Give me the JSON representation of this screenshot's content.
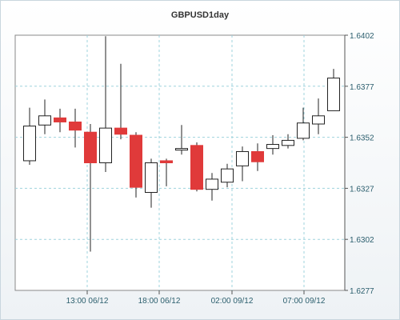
{
  "chart_data": {
    "type": "candlestick",
    "title": "GBPUSD1day",
    "ylim": [
      1.6277,
      1.6402
    ],
    "y_ticks": [
      "1.6402",
      "1.6377",
      "1.6352",
      "1.6327",
      "1.6302",
      "1.6277"
    ],
    "x_ticks": [
      "13:00 06/12",
      "18:00 06/12",
      "02:00 09/12",
      "07:00 09/12"
    ],
    "grid": true,
    "colors": {
      "up": "#ffffff",
      "down": "#e03a3a",
      "outline": "#222222",
      "grid": "#9fd3dd"
    },
    "candles": [
      {
        "open": 1.63405,
        "close": 1.63575,
        "high": 1.63665,
        "low": 1.63385
      },
      {
        "open": 1.6358,
        "close": 1.63625,
        "high": 1.63705,
        "low": 1.63535
      },
      {
        "open": 1.63615,
        "close": 1.63595,
        "high": 1.6366,
        "low": 1.63545
      },
      {
        "open": 1.63595,
        "close": 1.63555,
        "high": 1.6366,
        "low": 1.6347
      },
      {
        "open": 1.63545,
        "close": 1.63395,
        "high": 1.63585,
        "low": 1.6296
      },
      {
        "open": 1.63395,
        "close": 1.63565,
        "high": 1.64015,
        "low": 1.6335
      },
      {
        "open": 1.63565,
        "close": 1.63535,
        "high": 1.6388,
        "low": 1.6351
      },
      {
        "open": 1.6353,
        "close": 1.63275,
        "high": 1.63545,
        "low": 1.63225
      },
      {
        "open": 1.6325,
        "close": 1.63395,
        "high": 1.63415,
        "low": 1.63175
      },
      {
        "open": 1.63405,
        "close": 1.63395,
        "high": 1.63415,
        "low": 1.6328
      },
      {
        "open": 1.63465,
        "close": 1.63465,
        "high": 1.6358,
        "low": 1.63435
      },
      {
        "open": 1.6348,
        "close": 1.63265,
        "high": 1.63495,
        "low": 1.63255
      },
      {
        "open": 1.63265,
        "close": 1.63315,
        "high": 1.63345,
        "low": 1.6321
      },
      {
        "open": 1.633,
        "close": 1.63365,
        "high": 1.6339,
        "low": 1.63275
      },
      {
        "open": 1.6338,
        "close": 1.6345,
        "high": 1.63475,
        "low": 1.63305
      },
      {
        "open": 1.6345,
        "close": 1.634,
        "high": 1.6349,
        "low": 1.63355
      },
      {
        "open": 1.63465,
        "close": 1.63485,
        "high": 1.6353,
        "low": 1.63435
      },
      {
        "open": 1.6348,
        "close": 1.63505,
        "high": 1.63535,
        "low": 1.63465
      },
      {
        "open": 1.63515,
        "close": 1.6359,
        "high": 1.63665,
        "low": 1.63505
      },
      {
        "open": 1.63585,
        "close": 1.63625,
        "high": 1.6371,
        "low": 1.63535
      },
      {
        "open": 1.6365,
        "close": 1.6381,
        "high": 1.63855,
        "low": 1.6365
      }
    ]
  }
}
